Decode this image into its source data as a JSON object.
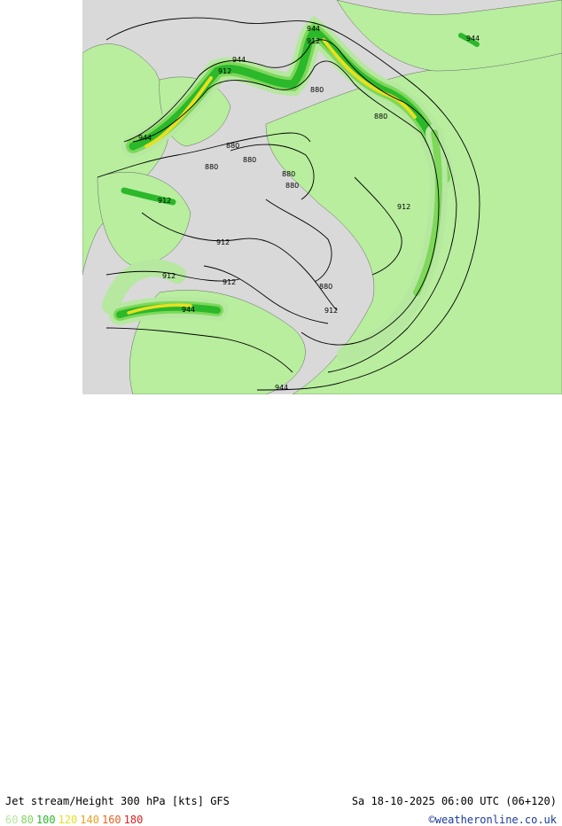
{
  "title": "Jet stream/Height 300 hPa [kts] GFS",
  "datetime": "Sa 18-10-2025 06:00 UTC (06+120)",
  "credit": "©weatheronline.co.uk",
  "legend": [
    {
      "label": "60",
      "color": "#b6e8a0"
    },
    {
      "label": "80",
      "color": "#7ed85a"
    },
    {
      "label": "100",
      "color": "#2bb82b"
    },
    {
      "label": "120",
      "color": "#e8e020"
    },
    {
      "label": "140",
      "color": "#e8a020"
    },
    {
      "label": "160",
      "color": "#e86020"
    },
    {
      "label": "180",
      "color": "#e02020"
    }
  ],
  "colors": {
    "sea": "#d8d8d8",
    "land": "#b5f0a0",
    "ocean_outside": "#ffffff",
    "contour": "#000000"
  },
  "contour_labels": [
    {
      "text": "944"
    },
    {
      "text": "912"
    },
    {
      "text": "944"
    },
    {
      "text": "912"
    },
    {
      "text": "880"
    },
    {
      "text": "880"
    },
    {
      "text": "880"
    },
    {
      "text": "880"
    },
    {
      "text": "880"
    },
    {
      "text": "880"
    },
    {
      "text": "912"
    },
    {
      "text": "912"
    },
    {
      "text": "944"
    },
    {
      "text": "912"
    },
    {
      "text": "944"
    },
    {
      "text": "912"
    },
    {
      "text": "912"
    },
    {
      "text": "880"
    },
    {
      "text": "912"
    },
    {
      "text": "944"
    },
    {
      "text": "880"
    },
    {
      "text": "944"
    },
    {
      "text": "912"
    },
    {
      "text": "944"
    }
  ]
}
